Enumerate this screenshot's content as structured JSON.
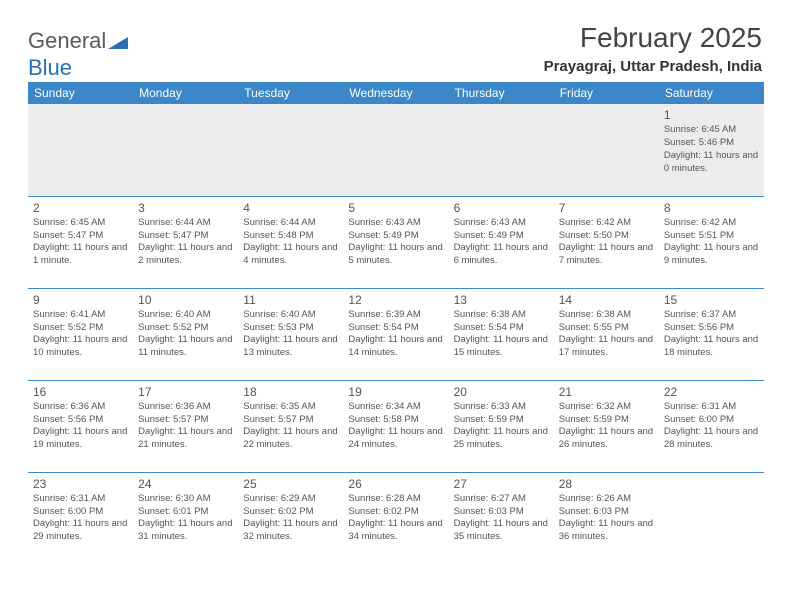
{
  "brand": {
    "name1": "General",
    "name2": "Blue",
    "tri_color": "#2a6fb5"
  },
  "header": {
    "month_title": "February 2025",
    "location": "Prayagraj, Uttar Pradesh, India"
  },
  "colors": {
    "header_bg": "#3b87c8",
    "header_fg": "#ffffff",
    "row_divider": "#3b87c8",
    "firstrow_bg": "#ececec",
    "text": "#444444"
  },
  "typography": {
    "month_title_fontsize": 28,
    "location_fontsize": 15,
    "dayhead_fontsize": 12,
    "daynum_fontsize": 12,
    "cell_fontsize": 9.5
  },
  "day_names": [
    "Sunday",
    "Monday",
    "Tuesday",
    "Wednesday",
    "Thursday",
    "Friday",
    "Saturday"
  ],
  "weeks": [
    [
      null,
      null,
      null,
      null,
      null,
      null,
      {
        "n": "1",
        "sr": "6:45 AM",
        "ss": "5:46 PM",
        "dl": "11 hours and 0 minutes."
      }
    ],
    [
      {
        "n": "2",
        "sr": "6:45 AM",
        "ss": "5:47 PM",
        "dl": "11 hours and 1 minute."
      },
      {
        "n": "3",
        "sr": "6:44 AM",
        "ss": "5:47 PM",
        "dl": "11 hours and 2 minutes."
      },
      {
        "n": "4",
        "sr": "6:44 AM",
        "ss": "5:48 PM",
        "dl": "11 hours and 4 minutes."
      },
      {
        "n": "5",
        "sr": "6:43 AM",
        "ss": "5:49 PM",
        "dl": "11 hours and 5 minutes."
      },
      {
        "n": "6",
        "sr": "6:43 AM",
        "ss": "5:49 PM",
        "dl": "11 hours and 6 minutes."
      },
      {
        "n": "7",
        "sr": "6:42 AM",
        "ss": "5:50 PM",
        "dl": "11 hours and 7 minutes."
      },
      {
        "n": "8",
        "sr": "6:42 AM",
        "ss": "5:51 PM",
        "dl": "11 hours and 9 minutes."
      }
    ],
    [
      {
        "n": "9",
        "sr": "6:41 AM",
        "ss": "5:52 PM",
        "dl": "11 hours and 10 minutes."
      },
      {
        "n": "10",
        "sr": "6:40 AM",
        "ss": "5:52 PM",
        "dl": "11 hours and 11 minutes."
      },
      {
        "n": "11",
        "sr": "6:40 AM",
        "ss": "5:53 PM",
        "dl": "11 hours and 13 minutes."
      },
      {
        "n": "12",
        "sr": "6:39 AM",
        "ss": "5:54 PM",
        "dl": "11 hours and 14 minutes."
      },
      {
        "n": "13",
        "sr": "6:38 AM",
        "ss": "5:54 PM",
        "dl": "11 hours and 15 minutes."
      },
      {
        "n": "14",
        "sr": "6:38 AM",
        "ss": "5:55 PM",
        "dl": "11 hours and 17 minutes."
      },
      {
        "n": "15",
        "sr": "6:37 AM",
        "ss": "5:56 PM",
        "dl": "11 hours and 18 minutes."
      }
    ],
    [
      {
        "n": "16",
        "sr": "6:36 AM",
        "ss": "5:56 PM",
        "dl": "11 hours and 19 minutes."
      },
      {
        "n": "17",
        "sr": "6:36 AM",
        "ss": "5:57 PM",
        "dl": "11 hours and 21 minutes."
      },
      {
        "n": "18",
        "sr": "6:35 AM",
        "ss": "5:57 PM",
        "dl": "11 hours and 22 minutes."
      },
      {
        "n": "19",
        "sr": "6:34 AM",
        "ss": "5:58 PM",
        "dl": "11 hours and 24 minutes."
      },
      {
        "n": "20",
        "sr": "6:33 AM",
        "ss": "5:59 PM",
        "dl": "11 hours and 25 minutes."
      },
      {
        "n": "21",
        "sr": "6:32 AM",
        "ss": "5:59 PM",
        "dl": "11 hours and 26 minutes."
      },
      {
        "n": "22",
        "sr": "6:31 AM",
        "ss": "6:00 PM",
        "dl": "11 hours and 28 minutes."
      }
    ],
    [
      {
        "n": "23",
        "sr": "6:31 AM",
        "ss": "6:00 PM",
        "dl": "11 hours and 29 minutes."
      },
      {
        "n": "24",
        "sr": "6:30 AM",
        "ss": "6:01 PM",
        "dl": "11 hours and 31 minutes."
      },
      {
        "n": "25",
        "sr": "6:29 AM",
        "ss": "6:02 PM",
        "dl": "11 hours and 32 minutes."
      },
      {
        "n": "26",
        "sr": "6:28 AM",
        "ss": "6:02 PM",
        "dl": "11 hours and 34 minutes."
      },
      {
        "n": "27",
        "sr": "6:27 AM",
        "ss": "6:03 PM",
        "dl": "11 hours and 35 minutes."
      },
      {
        "n": "28",
        "sr": "6:26 AM",
        "ss": "6:03 PM",
        "dl": "11 hours and 36 minutes."
      },
      null
    ]
  ],
  "labels": {
    "sunrise": "Sunrise: ",
    "sunset": "Sunset: ",
    "daylight": "Daylight: "
  }
}
